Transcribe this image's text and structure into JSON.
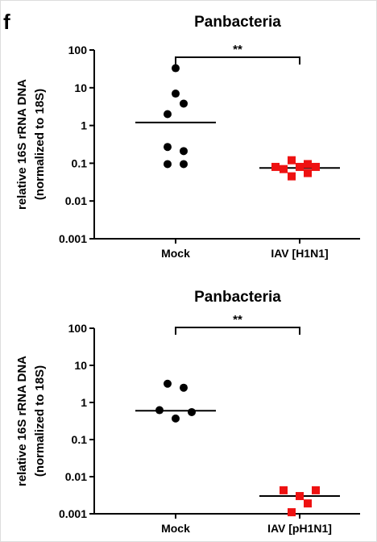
{
  "panel_label": "f",
  "chart_data": [
    {
      "type": "scatter",
      "title": "Panbacteria",
      "ylabel": "relative 16S rRNA DNA (normalized to 18S)",
      "ylabel_lines": [
        "relative 16S rRNA DNA",
        "(normalized to 18S)"
      ],
      "yscale": "log",
      "ylim": [
        0.001,
        100
      ],
      "yticks": [
        {
          "value": 100,
          "label": "100"
        },
        {
          "value": 10,
          "label": "10"
        },
        {
          "value": 1,
          "label": "1"
        },
        {
          "value": 0.1,
          "label": "0.1"
        },
        {
          "value": 0.01,
          "label": "0.01"
        },
        {
          "value": 0.001,
          "label": "0.001"
        }
      ],
      "categories": [
        "Mock",
        "IAV [H1N1]"
      ],
      "grid": false,
      "significance": {
        "from": 0,
        "to": 1,
        "label": "**"
      },
      "series": [
        {
          "category": "Mock",
          "marker": "circle",
          "color": "#000000",
          "median": 1.2,
          "points": [
            {
              "y": 33,
              "dx": 0
            },
            {
              "y": 7,
              "dx": 0
            },
            {
              "y": 3.8,
              "dx": 1
            },
            {
              "y": 2.0,
              "dx": -1
            },
            {
              "y": 0.27,
              "dx": -1
            },
            {
              "y": 0.21,
              "dx": 1
            },
            {
              "y": 0.095,
              "dx": -1
            },
            {
              "y": 0.095,
              "dx": 1
            }
          ]
        },
        {
          "category": "IAV [H1N1]",
          "marker": "square",
          "color": "#ee1111",
          "median": 0.075,
          "points": [
            {
              "y": 0.08,
              "dx": -3
            },
            {
              "y": 0.07,
              "dx": -2
            },
            {
              "y": 0.12,
              "dx": -1
            },
            {
              "y": 0.045,
              "dx": -1
            },
            {
              "y": 0.08,
              "dx": 0
            },
            {
              "y": 0.055,
              "dx": 1
            },
            {
              "y": 0.095,
              "dx": 1
            },
            {
              "y": 0.08,
              "dx": 2
            }
          ]
        }
      ]
    },
    {
      "type": "scatter",
      "title": "Panbacteria",
      "ylabel": "relative 16S rRNA DNA (normalized to 18S)",
      "ylabel_lines": [
        "relative 16S rRNA DNA",
        "(normalized to 18S)"
      ],
      "yscale": "log",
      "ylim": [
        0.001,
        100
      ],
      "yticks": [
        {
          "value": 100,
          "label": "100"
        },
        {
          "value": 10,
          "label": "10"
        },
        {
          "value": 1,
          "label": "1"
        },
        {
          "value": 0.1,
          "label": "0.1"
        },
        {
          "value": 0.01,
          "label": "0.01"
        },
        {
          "value": 0.001,
          "label": "0.001"
        }
      ],
      "categories": [
        "Mock",
        "IAV [pH1N1]"
      ],
      "grid": false,
      "significance": {
        "from": 0,
        "to": 1,
        "label": "**"
      },
      "series": [
        {
          "category": "Mock",
          "marker": "circle",
          "color": "#000000",
          "median": 0.6,
          "points": [
            {
              "y": 3.2,
              "dx": -1
            },
            {
              "y": 2.5,
              "dx": 1
            },
            {
              "y": 0.62,
              "dx": -2
            },
            {
              "y": 0.55,
              "dx": 2
            },
            {
              "y": 0.37,
              "dx": 0
            }
          ]
        },
        {
          "category": "IAV [pH1N1]",
          "marker": "square",
          "color": "#ee1111",
          "median": 0.003,
          "points": [
            {
              "y": 0.0043,
              "dx": -2
            },
            {
              "y": 0.0043,
              "dx": 2
            },
            {
              "y": 0.003,
              "dx": 0
            },
            {
              "y": 0.0019,
              "dx": 1
            },
            {
              "y": 0.0011,
              "dx": -1
            }
          ]
        }
      ]
    }
  ]
}
